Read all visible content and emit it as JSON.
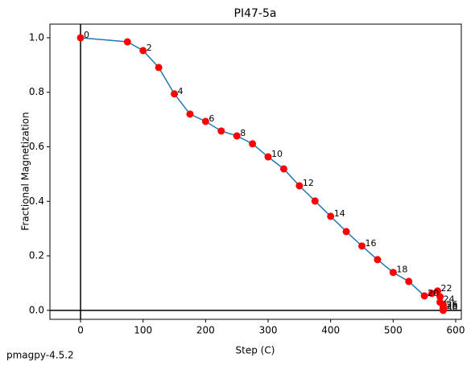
{
  "chart_data": {
    "type": "line",
    "title": "PI47-5a",
    "x_label": "Step (C)",
    "y_label": "Fractional Magnetization",
    "footer": "pmagpy-4.5.2",
    "x": [
      0,
      75,
      100,
      125,
      150,
      175,
      200,
      225,
      250,
      275,
      300,
      325,
      350,
      375,
      400,
      425,
      450,
      475,
      500,
      525,
      550,
      562,
      571,
      575,
      575,
      580,
      580,
      580,
      580,
      580,
      580
    ],
    "series": [
      {
        "color": "#1f77b4",
        "marker_color": "#ff0000",
        "values": [
          1.0,
          0.985,
          0.953,
          0.891,
          0.794,
          0.72,
          0.693,
          0.658,
          0.64,
          0.611,
          0.563,
          0.519,
          0.457,
          0.401,
          0.345,
          0.289,
          0.236,
          0.186,
          0.139,
          0.106,
          0.053,
          0.062,
          0.071,
          0.05,
          0.03,
          0.02,
          0.012,
          0.008,
          0.005,
          0.003,
          0.0
        ]
      }
    ],
    "point_labels": [
      "0",
      null,
      "2",
      null,
      "4",
      null,
      "6",
      null,
      "8",
      null,
      "10",
      null,
      "12",
      null,
      "14",
      null,
      "16",
      null,
      "18",
      null,
      "20",
      null,
      "22",
      null,
      "24",
      null,
      "26",
      null,
      "28",
      null,
      "30"
    ],
    "xlim": [
      -49,
      609
    ],
    "ylim": [
      -0.033,
      1.05
    ],
    "xticks": [
      0,
      100,
      200,
      300,
      400,
      500,
      600
    ],
    "yticks": [
      {
        "value": 0,
        "label": "0.0"
      },
      {
        "value": 0.2,
        "label": "0.2"
      },
      {
        "value": 0.4,
        "label": "0.4"
      },
      {
        "value": 0.6,
        "label": "0.6"
      },
      {
        "value": 0.8,
        "label": "0.8"
      },
      {
        "value": 1,
        "label": "1.0"
      }
    ],
    "zero_lines": true
  }
}
